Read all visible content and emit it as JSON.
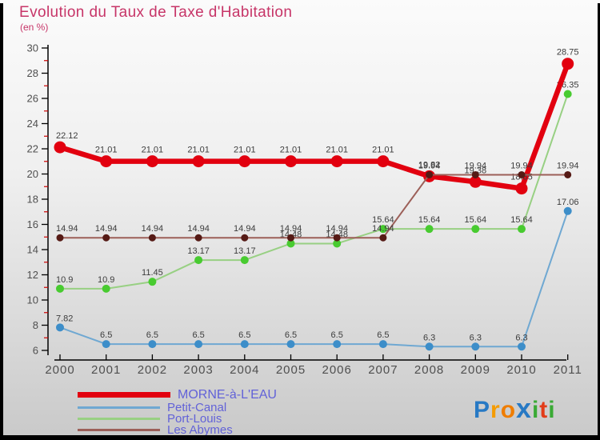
{
  "title": "Evolution du Taux de Taxe d'Habitation",
  "subtitle": "(en %)",
  "colors": {
    "title_text": "#c73568",
    "legend_text": "#6262d8",
    "axis_text": "#4f4f4f",
    "value_label_text": "#3c3c3c",
    "axis_line": "#000000",
    "minor_tick": "#cc0000",
    "morne_red": "#e2000f",
    "petit_canal_blue": "#3d8ec9",
    "port_louis_green": "#48cb30",
    "les_abymes_dark_red": "#551a15"
  },
  "chart_data": {
    "type": "line",
    "title": "Evolution du Taux de Taxe d'Habitation",
    "subtitle": "(en %)",
    "x_labels": [
      "2000",
      "2001",
      "2002",
      "2003",
      "2004",
      "2005",
      "2006",
      "2007",
      "2008",
      "2009",
      "2010",
      "2011"
    ],
    "ylim": [
      6,
      30
    ],
    "y_ticks": [
      6,
      8,
      10,
      12,
      14,
      16,
      18,
      20,
      22,
      24,
      26,
      28,
      30
    ],
    "y_minor_ticks": [
      7,
      9,
      11,
      13,
      15,
      17,
      19,
      21,
      23,
      25,
      27,
      29
    ],
    "grid": false,
    "legend_position": "bottom-left",
    "point_labels_shown": true,
    "series": [
      {
        "name": "MORNE-à-L'EAU",
        "line_color": "#e2000f",
        "marker_color": "#e2000f",
        "line_width": 6.5,
        "marker_radius": 7.5,
        "values": [
          22.12,
          21.01,
          21.01,
          21.01,
          21.01,
          21.01,
          21.01,
          21.01,
          19.82,
          19.38,
          18.85,
          28.75
        ]
      },
      {
        "name": "Petit-Canal",
        "line_color": "#6fa8d2",
        "marker_color": "#3d8ec9",
        "line_width": 2,
        "marker_radius": 5,
        "values": [
          7.82,
          6.5,
          6.5,
          6.5,
          6.5,
          6.5,
          6.5,
          6.5,
          6.3,
          6.3,
          6.3,
          17.06
        ]
      },
      {
        "name": "Port-Louis",
        "line_color": "#98d083",
        "marker_color": "#48cb30",
        "line_width": 2,
        "marker_radius": 5,
        "values": [
          10.9,
          10.9,
          11.45,
          13.17,
          13.17,
          14.48,
          14.48,
          15.64,
          15.64,
          15.64,
          15.64,
          26.35
        ]
      },
      {
        "name": "Les Abymes",
        "line_color": "#9c5f58",
        "marker_color": "#551a15",
        "line_width": 2,
        "marker_radius": 4.5,
        "values": [
          14.94,
          14.94,
          14.94,
          14.94,
          14.94,
          14.94,
          14.94,
          14.94,
          19.94,
          19.94,
          19.94,
          19.94
        ]
      }
    ]
  },
  "logo": {
    "text": "Proxiti",
    "letters": [
      {
        "ch": "P",
        "color": "#2779c4"
      },
      {
        "ch": "r",
        "color": "#f59b00"
      },
      {
        "ch": "o",
        "color": "#ef7d00"
      },
      {
        "ch": "x",
        "color": "#2779c4"
      },
      {
        "ch": "i",
        "color": "#3aaa35"
      },
      {
        "ch": "t",
        "color": "#e23c19"
      },
      {
        "ch": "i",
        "color": "#3aaa35"
      }
    ]
  }
}
